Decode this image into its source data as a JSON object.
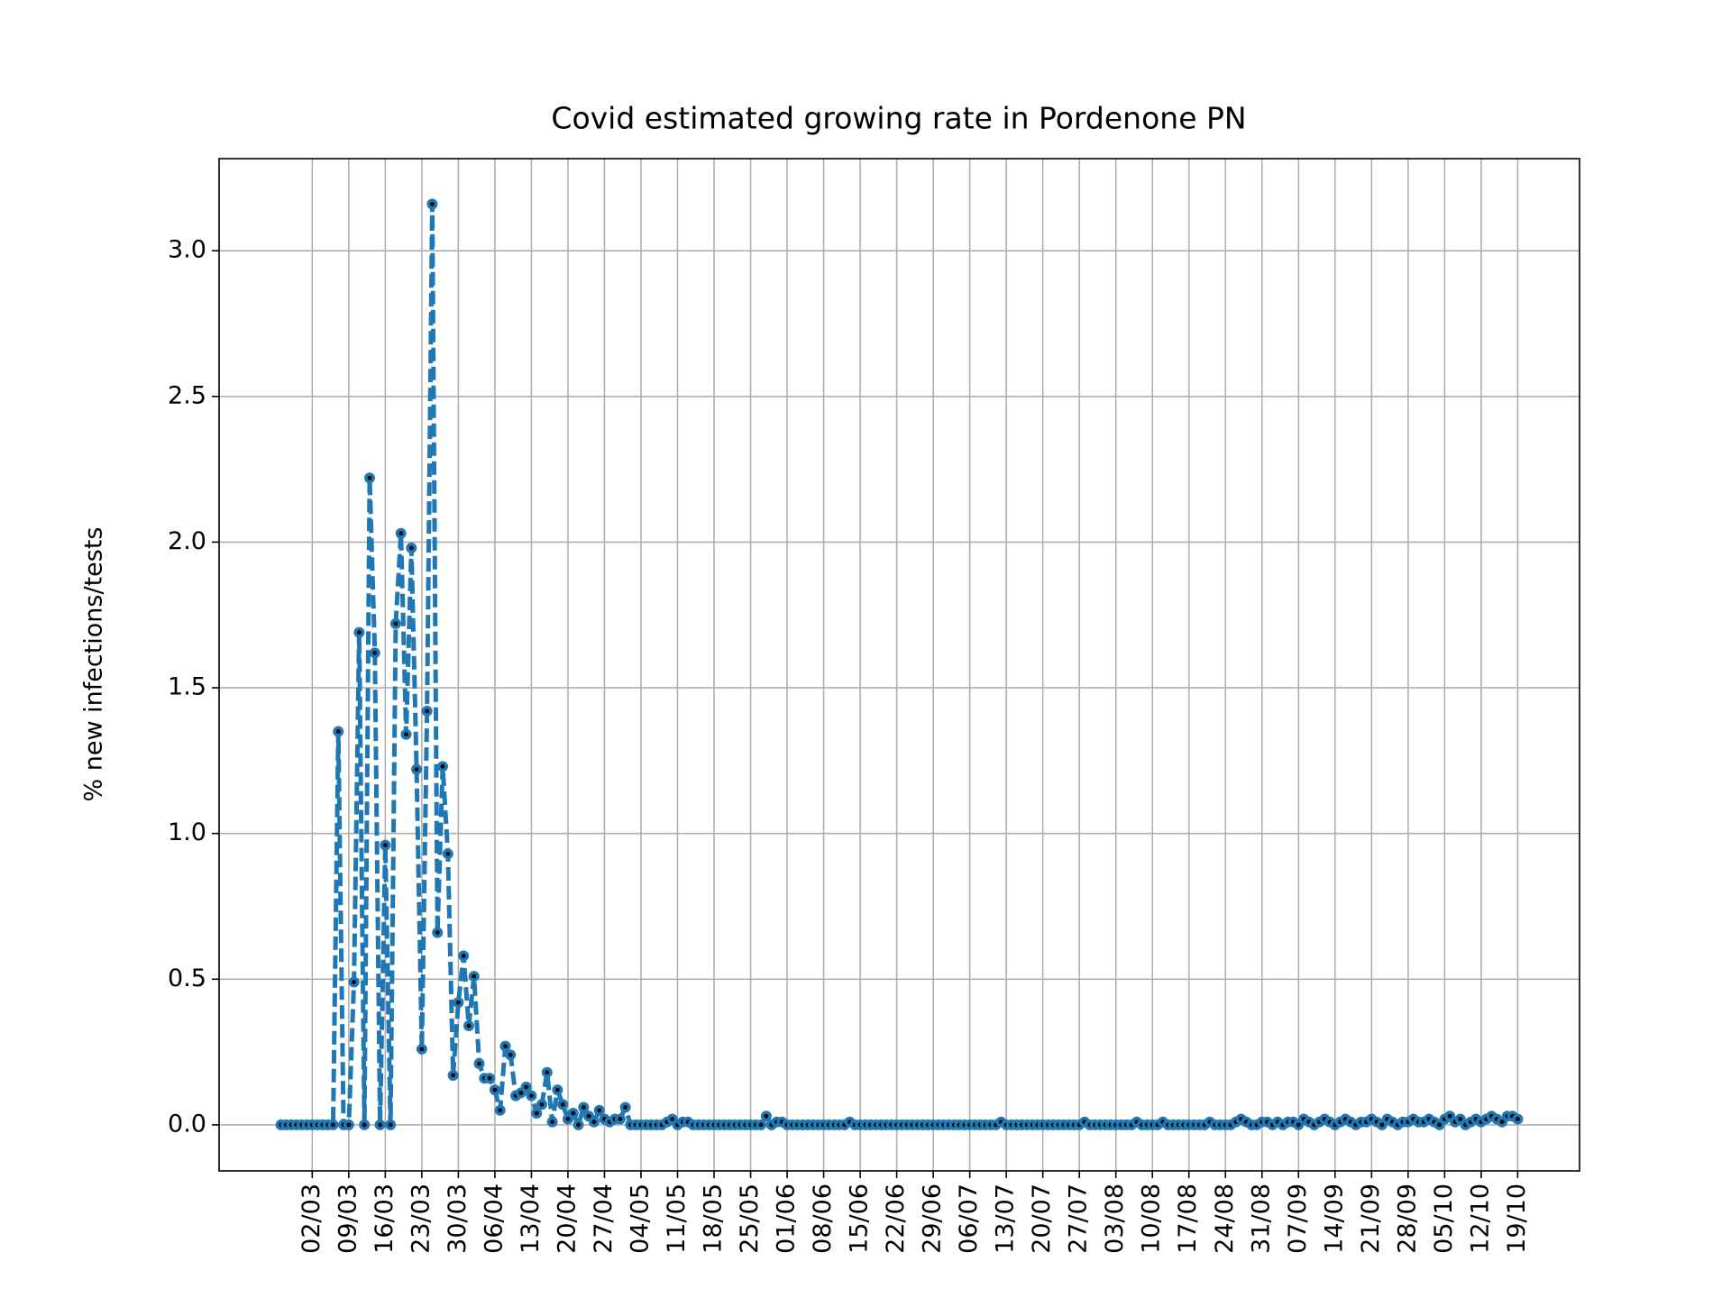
{
  "chart_data": {
    "type": "line",
    "title": "Covid estimated growing rate in Pordenone PN",
    "ylabel": "% new infections/tests",
    "categories": [
      null,
      null,
      null,
      null,
      null,
      null,
      "02/03",
      null,
      null,
      null,
      null,
      null,
      null,
      "09/03",
      null,
      null,
      null,
      null,
      null,
      null,
      "16/03",
      null,
      null,
      null,
      null,
      null,
      null,
      "23/03",
      null,
      null,
      null,
      null,
      null,
      null,
      "30/03",
      null,
      null,
      null,
      null,
      null,
      null,
      "06/04",
      null,
      null,
      null,
      null,
      null,
      null,
      "13/04",
      null,
      null,
      null,
      null,
      null,
      null,
      "20/04",
      null,
      null,
      null,
      null,
      null,
      null,
      "27/04",
      null,
      null,
      null,
      null,
      null,
      null,
      "04/05",
      null,
      null,
      null,
      null,
      null,
      null,
      "11/05",
      null,
      null,
      null,
      null,
      null,
      null,
      "18/05",
      null,
      null,
      null,
      null,
      null,
      null,
      "25/05",
      null,
      null,
      null,
      null,
      null,
      null,
      "01/06",
      null,
      null,
      null,
      null,
      null,
      null,
      "08/06",
      null,
      null,
      null,
      null,
      null,
      null,
      "15/06",
      null,
      null,
      null,
      null,
      null,
      null,
      "22/06",
      null,
      null,
      null,
      null,
      null,
      null,
      "29/06",
      null,
      null,
      null,
      null,
      null,
      null,
      "06/07",
      null,
      null,
      null,
      null,
      null,
      null,
      "13/07",
      null,
      null,
      null,
      null,
      null,
      null,
      "20/07",
      null,
      null,
      null,
      null,
      null,
      null,
      "27/07",
      null,
      null,
      null,
      null,
      null,
      null,
      "03/08",
      null,
      null,
      null,
      null,
      null,
      null,
      "10/08",
      null,
      null,
      null,
      null,
      null,
      null,
      "17/08",
      null,
      null,
      null,
      null,
      null,
      null,
      "24/08",
      null,
      null,
      null,
      null,
      null,
      null,
      "31/08",
      null,
      null,
      null,
      null,
      null,
      null,
      "07/09",
      null,
      null,
      null,
      null,
      null,
      null,
      "14/09",
      null,
      null,
      null,
      null,
      null,
      null,
      "21/09",
      null,
      null,
      null,
      null,
      null,
      null,
      "28/09",
      null,
      null,
      null,
      null,
      null,
      null,
      "05/10",
      null,
      null,
      null,
      null,
      null,
      null,
      "12/10",
      null,
      null,
      null,
      null,
      null,
      null,
      "19/10"
    ],
    "values": [
      0,
      0,
      0,
      0,
      0,
      0,
      0,
      0,
      0,
      0,
      0,
      1.35,
      0,
      0,
      0.49,
      1.69,
      0,
      2.22,
      1.62,
      0,
      0.96,
      0,
      1.72,
      2.03,
      1.34,
      1.98,
      1.22,
      0.26,
      1.42,
      3.16,
      0.66,
      1.23,
      0.93,
      0.17,
      0.42,
      0.58,
      0.34,
      0.51,
      0.21,
      0.16,
      0.16,
      0.12,
      0.05,
      0.27,
      0.24,
      0.1,
      0.11,
      0.13,
      0.1,
      0.04,
      0.07,
      0.18,
      0.01,
      0.12,
      0.07,
      0.02,
      0.04,
      0,
      0.06,
      0.03,
      0.01,
      0.05,
      0.02,
      0.01,
      0.02,
      0.02,
      0.06,
      0,
      0,
      0,
      0,
      0,
      0,
      0,
      0.01,
      0.02,
      0,
      0.01,
      0.01,
      0,
      0,
      0,
      0,
      0,
      0,
      0,
      0,
      0,
      0,
      0,
      0,
      0,
      0,
      0.03,
      0,
      0.01,
      0.01,
      0,
      0,
      0,
      0,
      0,
      0,
      0,
      0,
      0,
      0,
      0,
      0,
      0.01,
      0,
      0,
      0,
      0,
      0,
      0,
      0,
      0,
      0,
      0,
      0,
      0,
      0,
      0,
      0,
      0,
      0,
      0,
      0,
      0,
      0,
      0,
      0,
      0,
      0,
      0,
      0,
      0,
      0.01,
      0,
      0,
      0,
      0,
      0,
      0,
      0,
      0,
      0,
      0,
      0,
      0,
      0,
      0,
      0,
      0.01,
      0,
      0,
      0,
      0,
      0,
      0,
      0,
      0,
      0,
      0.01,
      0,
      0,
      0,
      0,
      0.01,
      0,
      0,
      0,
      0,
      0,
      0,
      0,
      0,
      0.01,
      0,
      0,
      0,
      0,
      0.01,
      0.02,
      0.01,
      0,
      0,
      0.01,
      0.01,
      0,
      0.01,
      0,
      0.01,
      0.01,
      0,
      0.02,
      0.01,
      0,
      0.01,
      0.02,
      0.01,
      0,
      0.01,
      0.02,
      0.01,
      0,
      0.01,
      0.01,
      0.02,
      0.01,
      0,
      0.02,
      0.01,
      0,
      0.01,
      0.01,
      0.02,
      0.01,
      0.01,
      0.02,
      0.01,
      0,
      0.02,
      0.03,
      0.01,
      0.02,
      0,
      0.01,
      0.02,
      0.01,
      0.02,
      0.03,
      0.02,
      0.01,
      0.03,
      0.03,
      0.02
    ],
    "color": "#1f77b4",
    "xlim": [
      -11.85,
      248.85
    ],
    "ylim": [
      -0.158,
      3.316
    ],
    "yticks": [
      {
        "value": 0,
        "label": "0.0"
      },
      0.5,
      {
        "value": 1,
        "label": "1.0"
      },
      1.5,
      {
        "value": 2,
        "label": "2.0"
      },
      2.5,
      {
        "value": 3,
        "label": "3.0"
      }
    ],
    "grid": true
  }
}
